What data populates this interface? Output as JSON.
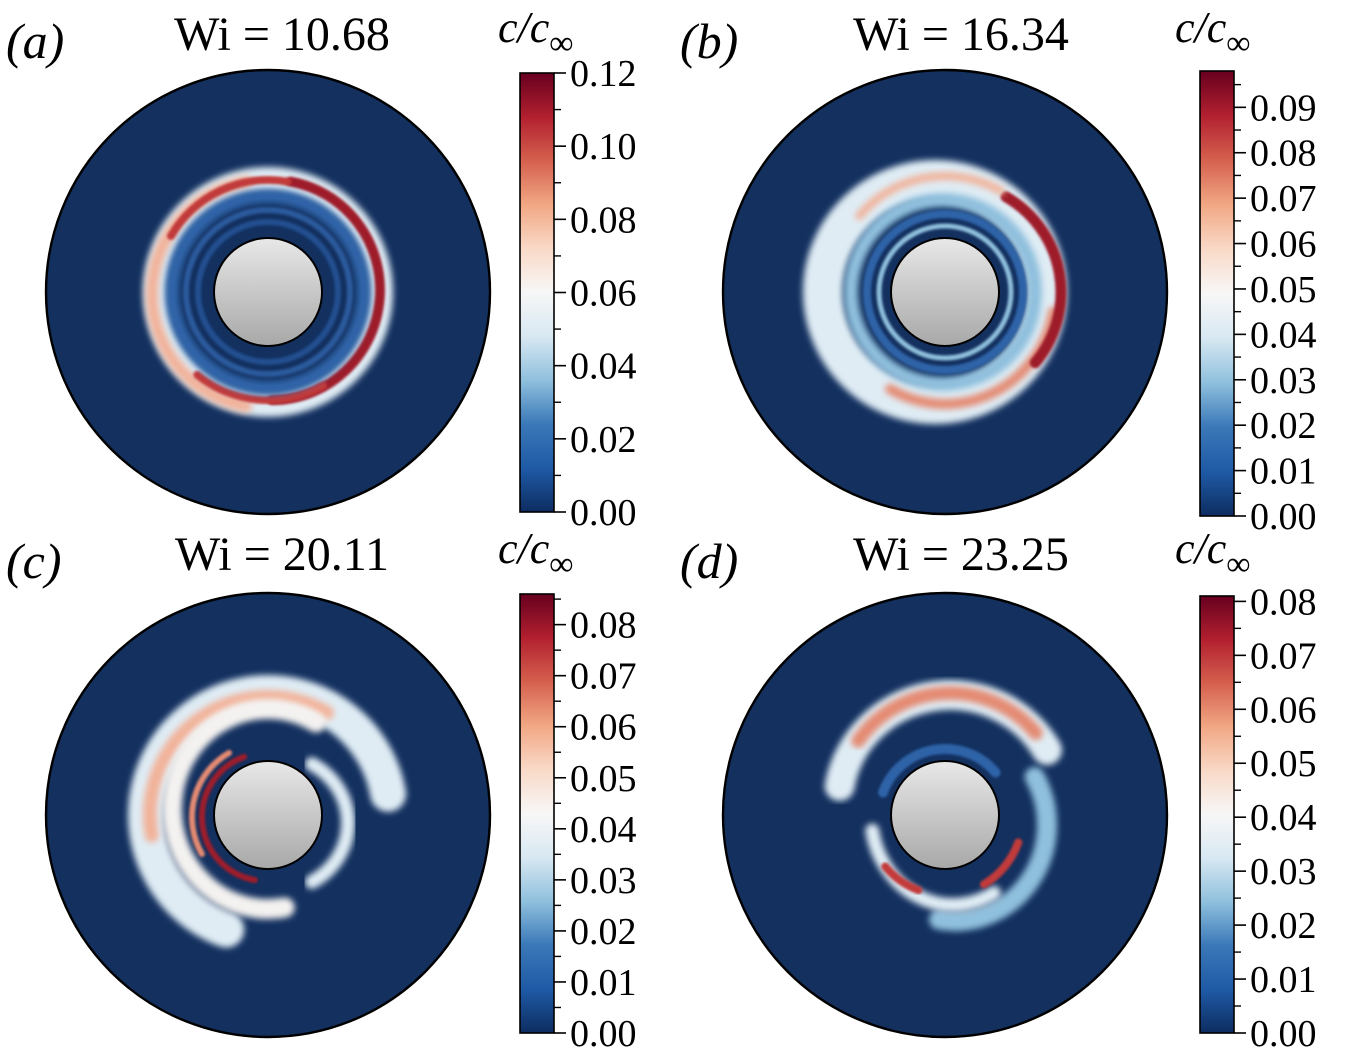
{
  "figure": {
    "colormap": {
      "name": "RdBu_r",
      "stops": [
        "#0d2d61",
        "#1f5aa6",
        "#3a78b8",
        "#8fc0dd",
        "#d8e8f2",
        "#f7f7f7",
        "#f9d9c7",
        "#f1a784",
        "#d5604e",
        "#b2202f",
        "#67001f"
      ]
    },
    "background_color": "#13305f",
    "inner_cylinder_color_top": "#e8e8e8",
    "inner_cylinder_color_bottom": "#a8a8a8",
    "colorbar_symbol": "c/c",
    "colorbar_symbol_sub": "∞",
    "panels": [
      {
        "id": "a",
        "label": "(a)",
        "label_letter": "a",
        "title": "Wi = 10.68",
        "colorbar": {
          "min": 0.0,
          "max": 0.12,
          "ticks": [
            "0.00",
            "0.02",
            "0.04",
            "0.06",
            "0.08",
            "0.10",
            "0.12"
          ],
          "tick_values": [
            0.0,
            0.02,
            0.04,
            0.06,
            0.08,
            0.1,
            0.12
          ]
        }
      },
      {
        "id": "b",
        "label": "(b)",
        "label_letter": "b",
        "title": "Wi = 16.34",
        "colorbar": {
          "min": 0.0,
          "max": 0.098,
          "ticks": [
            "0.00",
            "0.01",
            "0.02",
            "0.03",
            "0.04",
            "0.05",
            "0.06",
            "0.07",
            "0.08",
            "0.09"
          ],
          "tick_values": [
            0.0,
            0.01,
            0.02,
            0.03,
            0.04,
            0.05,
            0.06,
            0.07,
            0.08,
            0.09
          ]
        }
      },
      {
        "id": "c",
        "label": "(c)",
        "label_letter": "c",
        "title": "Wi = 20.11",
        "colorbar": {
          "min": 0.0,
          "max": 0.086,
          "ticks": [
            "0.00",
            "0.01",
            "0.02",
            "0.03",
            "0.04",
            "0.05",
            "0.06",
            "0.07",
            "0.08"
          ],
          "tick_values": [
            0.0,
            0.01,
            0.02,
            0.03,
            0.04,
            0.05,
            0.06,
            0.07,
            0.08
          ]
        }
      },
      {
        "id": "d",
        "label": "(d)",
        "label_letter": "d",
        "title": "Wi = 23.25",
        "colorbar": {
          "min": 0.0,
          "max": 0.081,
          "ticks": [
            "0.00",
            "0.01",
            "0.02",
            "0.03",
            "0.04",
            "0.05",
            "0.06",
            "0.07",
            "0.08"
          ],
          "tick_values": [
            0.0,
            0.01,
            0.02,
            0.03,
            0.04,
            0.05,
            0.06,
            0.07,
            0.08
          ]
        }
      }
    ]
  }
}
